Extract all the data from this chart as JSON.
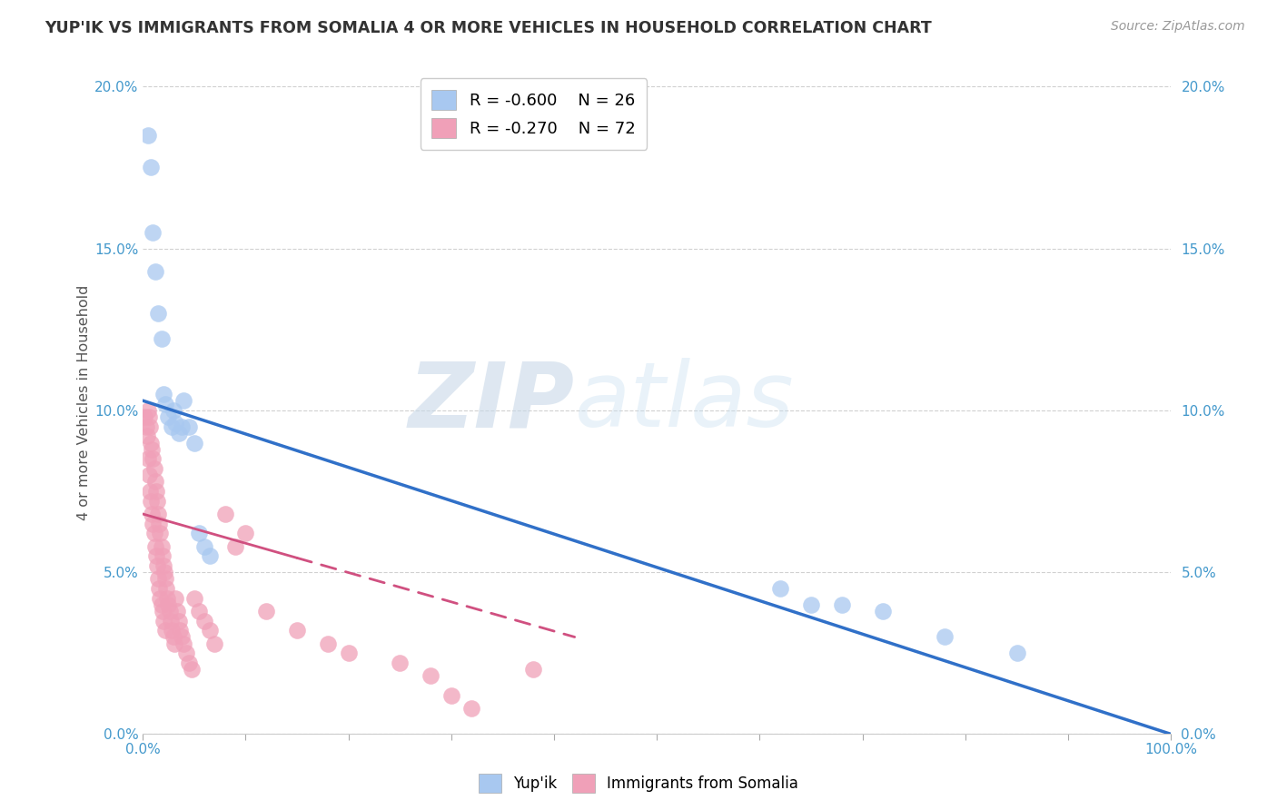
{
  "title": "YUP'IK VS IMMIGRANTS FROM SOMALIA 4 OR MORE VEHICLES IN HOUSEHOLD CORRELATION CHART",
  "source": "Source: ZipAtlas.com",
  "ylabel": "4 or more Vehicles in Household",
  "legend_labels": [
    "Yup'ik",
    "Immigrants from Somalia"
  ],
  "legend_r": [
    "R = -0.600",
    "R = -0.270"
  ],
  "legend_n": [
    "N = 26",
    "N = 72"
  ],
  "blue_color": "#A8C8F0",
  "pink_color": "#F0A0B8",
  "blue_line_color": "#3070C8",
  "pink_line_color": "#D05080",
  "watermark_zip": "ZIP",
  "watermark_atlas": "atlas",
  "xlim": [
    0,
    1.0
  ],
  "ylim": [
    0,
    0.205
  ],
  "xtick_labels_show": [
    "0.0%",
    "100.0%"
  ],
  "yticks": [
    0,
    0.05,
    0.1,
    0.15,
    0.2
  ],
  "blue_scatter_x": [
    0.005,
    0.008,
    0.01,
    0.012,
    0.015,
    0.018,
    0.02,
    0.022,
    0.025,
    0.028,
    0.03,
    0.032,
    0.035,
    0.038,
    0.04,
    0.045,
    0.05,
    0.055,
    0.06,
    0.065,
    0.62,
    0.65,
    0.68,
    0.72,
    0.78,
    0.85
  ],
  "blue_scatter_y": [
    0.185,
    0.175,
    0.155,
    0.143,
    0.13,
    0.122,
    0.105,
    0.102,
    0.098,
    0.095,
    0.1,
    0.096,
    0.093,
    0.095,
    0.103,
    0.095,
    0.09,
    0.062,
    0.058,
    0.055,
    0.045,
    0.04,
    0.04,
    0.038,
    0.03,
    0.025
  ],
  "pink_scatter_x": [
    0.002,
    0.003,
    0.004,
    0.005,
    0.005,
    0.006,
    0.006,
    0.007,
    0.007,
    0.008,
    0.008,
    0.009,
    0.009,
    0.01,
    0.01,
    0.011,
    0.011,
    0.012,
    0.012,
    0.013,
    0.013,
    0.014,
    0.014,
    0.015,
    0.015,
    0.016,
    0.016,
    0.017,
    0.017,
    0.018,
    0.018,
    0.019,
    0.019,
    0.02,
    0.02,
    0.021,
    0.022,
    0.022,
    0.023,
    0.024,
    0.025,
    0.026,
    0.027,
    0.028,
    0.03,
    0.031,
    0.032,
    0.033,
    0.035,
    0.036,
    0.038,
    0.04,
    0.042,
    0.045,
    0.048,
    0.05,
    0.055,
    0.06,
    0.065,
    0.07,
    0.08,
    0.09,
    0.1,
    0.12,
    0.15,
    0.18,
    0.2,
    0.25,
    0.28,
    0.3,
    0.32,
    0.38
  ],
  "pink_scatter_y": [
    0.098,
    0.095,
    0.092,
    0.1,
    0.085,
    0.098,
    0.08,
    0.095,
    0.075,
    0.09,
    0.072,
    0.088,
    0.068,
    0.085,
    0.065,
    0.082,
    0.062,
    0.078,
    0.058,
    0.075,
    0.055,
    0.072,
    0.052,
    0.068,
    0.048,
    0.065,
    0.045,
    0.062,
    0.042,
    0.058,
    0.04,
    0.055,
    0.038,
    0.052,
    0.035,
    0.05,
    0.048,
    0.032,
    0.045,
    0.042,
    0.04,
    0.038,
    0.035,
    0.032,
    0.03,
    0.028,
    0.042,
    0.038,
    0.035,
    0.032,
    0.03,
    0.028,
    0.025,
    0.022,
    0.02,
    0.042,
    0.038,
    0.035,
    0.032,
    0.028,
    0.068,
    0.058,
    0.062,
    0.038,
    0.032,
    0.028,
    0.025,
    0.022,
    0.018,
    0.012,
    0.008,
    0.02
  ],
  "blue_trend_x0": 0.0,
  "blue_trend_y0": 0.103,
  "blue_trend_x1": 1.0,
  "blue_trend_y1": 0.0,
  "pink_trend_x0": 0.0,
  "pink_trend_y0": 0.068,
  "pink_trend_x1": 0.42,
  "pink_trend_y1": 0.03
}
